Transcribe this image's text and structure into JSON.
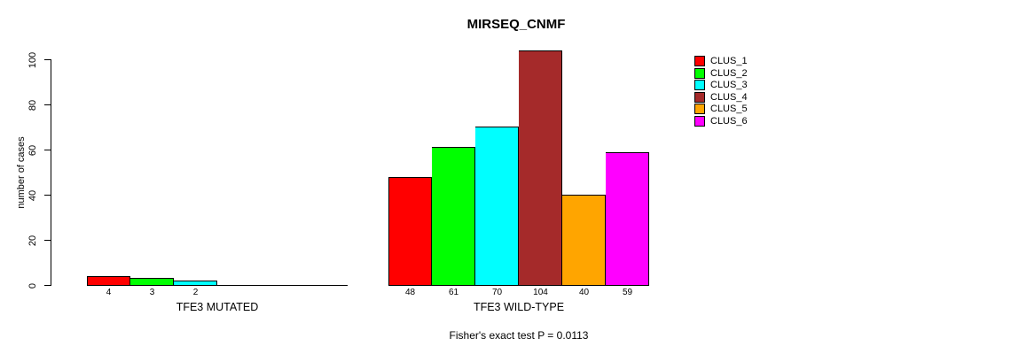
{
  "chart_data": {
    "type": "bar",
    "title": "MIRSEQ_CNMF",
    "ylabel": "number of cases",
    "xlabel": "",
    "ylim": [
      0,
      100
    ],
    "yticks": [
      0,
      20,
      40,
      60,
      80,
      100
    ],
    "grid": false,
    "legend_position": "right",
    "legend": [
      {
        "label": "CLUS_1",
        "color": "#FF0000"
      },
      {
        "label": "CLUS_2",
        "color": "#00FF00"
      },
      {
        "label": "CLUS_3",
        "color": "#00FFFF"
      },
      {
        "label": "CLUS_4",
        "color": "#A52A2A"
      },
      {
        "label": "CLUS_5",
        "color": "#FFA500"
      },
      {
        "label": "CLUS_6",
        "color": "#FF00FF"
      }
    ],
    "groups": [
      {
        "label": "TFE3 MUTATED",
        "bar_labels": [
          "4",
          "3",
          "2"
        ],
        "values": [
          4,
          3,
          2
        ],
        "colors": [
          "#FF0000",
          "#00FF00",
          "#00FFFF"
        ]
      },
      {
        "label": "TFE3 WILD-TYPE",
        "bar_labels": [
          "48",
          "61",
          "70",
          "104",
          "40",
          "59"
        ],
        "values": [
          48,
          61,
          70,
          104,
          40,
          59
        ],
        "colors": [
          "#FF0000",
          "#00FF00",
          "#00FFFF",
          "#A52A2A",
          "#FFA500",
          "#FF00FF"
        ]
      }
    ],
    "footnote": "Fisher's exact test P = 0.0113"
  }
}
